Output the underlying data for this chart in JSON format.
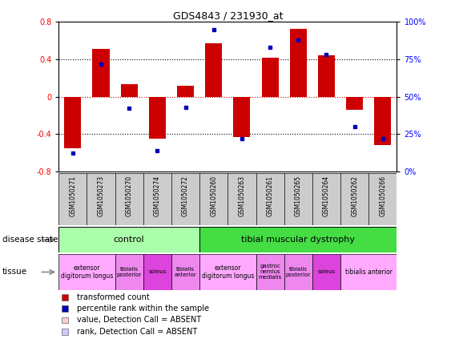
{
  "title": "GDS4843 / 231930_at",
  "samples": [
    "GSM1050271",
    "GSM1050273",
    "GSM1050270",
    "GSM1050274",
    "GSM1050272",
    "GSM1050260",
    "GSM1050263",
    "GSM1050261",
    "GSM1050265",
    "GSM1050264",
    "GSM1050262",
    "GSM1050266"
  ],
  "bar_values": [
    -0.55,
    0.51,
    0.13,
    -0.45,
    0.12,
    0.57,
    -0.43,
    0.42,
    0.73,
    0.44,
    -0.14,
    -0.52
  ],
  "dot_values": [
    12,
    72,
    42,
    14,
    43,
    95,
    22,
    83,
    88,
    78,
    30,
    22
  ],
  "ylim_left": [
    -0.8,
    0.8
  ],
  "ylim_right": [
    0,
    100
  ],
  "yticks_left": [
    -0.8,
    -0.4,
    0.0,
    0.4,
    0.8
  ],
  "ytick_labels_left": [
    "-0.8",
    "-0.4",
    "0",
    "0.4",
    "0.8"
  ],
  "yticks_right": [
    0,
    25,
    50,
    75,
    100
  ],
  "ytick_labels_right": [
    "0%",
    "25%",
    "50%",
    "75%",
    "100%"
  ],
  "hlines": [
    -0.4,
    0.0,
    0.4
  ],
  "bar_color": "#cc0000",
  "dot_color": "#0000bb",
  "bg_color": "#ffffff",
  "plot_bg": "#ffffff",
  "grid_color": "#000000",
  "control_color": "#aaffaa",
  "dystrophy_color": "#44dd44",
  "tissue_data": [
    {
      "label": "extensor\ndigitorum longus",
      "start": 0,
      "end": 2,
      "color": "#ffaaff"
    },
    {
      "label": "tibialis\nposterior",
      "start": 2,
      "end": 3,
      "color": "#ee88ee"
    },
    {
      "label": "soleus",
      "start": 3,
      "end": 4,
      "color": "#dd44dd"
    },
    {
      "label": "tibialis\nanterior",
      "start": 4,
      "end": 5,
      "color": "#ee88ee"
    },
    {
      "label": "extensor\ndigitorum longus",
      "start": 5,
      "end": 7,
      "color": "#ffaaff"
    },
    {
      "label": "gastroc\nnemius\nmedialis",
      "start": 7,
      "end": 8,
      "color": "#ee88ee"
    },
    {
      "label": "tibialis\nposterior",
      "start": 8,
      "end": 9,
      "color": "#ee88ee"
    },
    {
      "label": "soleus",
      "start": 9,
      "end": 10,
      "color": "#dd44dd"
    },
    {
      "label": "tibialis anterior",
      "start": 10,
      "end": 12,
      "color": "#ffaaff"
    }
  ],
  "legend_items": [
    {
      "label": "transformed count",
      "color": "#cc0000"
    },
    {
      "label": "percentile rank within the sample",
      "color": "#0000bb"
    },
    {
      "label": "value, Detection Call = ABSENT",
      "color": "#ffcccc"
    },
    {
      "label": "rank, Detection Call = ABSENT",
      "color": "#ccccff"
    }
  ]
}
